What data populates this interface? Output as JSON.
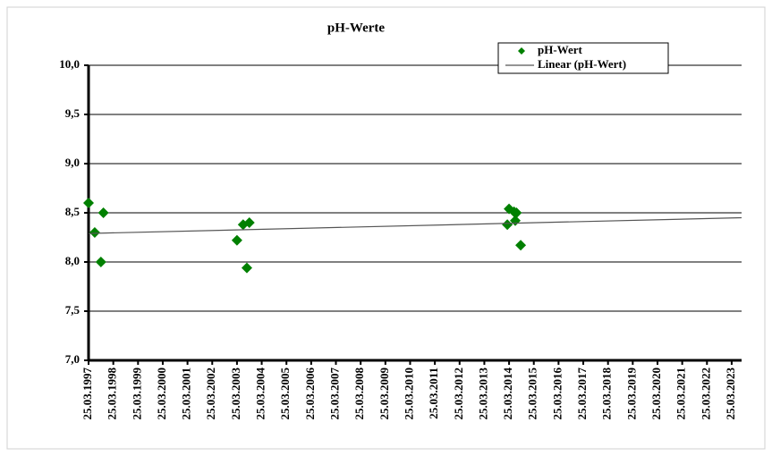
{
  "chart_data": {
    "type": "scatter",
    "title": "pH-Werte",
    "series": [
      {
        "name": "pH-Wert",
        "color": "#008000",
        "x": [
          1997.0,
          1997.25,
          1997.5,
          1997.6,
          2003.0,
          2003.25,
          2003.5,
          2003.4,
          2013.93,
          2014.0,
          2014.2,
          2014.3,
          2014.25,
          2014.47
        ],
        "values": [
          8.6,
          8.3,
          8.0,
          8.5,
          8.22,
          8.38,
          8.4,
          7.94,
          8.38,
          8.54,
          8.51,
          8.5,
          8.42,
          8.17
        ]
      },
      {
        "name": "Linear (pH-Wert)",
        "type": "line",
        "color": "#555555",
        "x": [
          1997.0,
          2023.4
        ],
        "values": [
          8.29,
          8.45
        ]
      }
    ],
    "xlim": [
      1997.0,
      2023.4
    ],
    "xticks": [
      {
        "value": 1997,
        "label": "25.03.1997"
      },
      {
        "value": 1998,
        "label": "25.03.1998"
      },
      {
        "value": 1999,
        "label": "25.03.1999"
      },
      {
        "value": 2000,
        "label": "25.03.2000"
      },
      {
        "value": 2001,
        "label": "25.03.2001"
      },
      {
        "value": 2002,
        "label": "25.03.2002"
      },
      {
        "value": 2003,
        "label": "25.03.2003"
      },
      {
        "value": 2004,
        "label": "25.03.2004"
      },
      {
        "value": 2005,
        "label": "25.03.2005"
      },
      {
        "value": 2006,
        "label": "25.03.2006"
      },
      {
        "value": 2007,
        "label": "25.03.2007"
      },
      {
        "value": 2008,
        "label": "25.03.2008"
      },
      {
        "value": 2009,
        "label": "25.03.2009"
      },
      {
        "value": 2010,
        "label": "25.03.2010"
      },
      {
        "value": 2011,
        "label": "25.03.2011"
      },
      {
        "value": 2012,
        "label": "25.03.2012"
      },
      {
        "value": 2013,
        "label": "25.03.2013"
      },
      {
        "value": 2014,
        "label": "25.03.2014"
      },
      {
        "value": 2015,
        "label": "25.03.2015"
      },
      {
        "value": 2016,
        "label": "25.03.2016"
      },
      {
        "value": 2017,
        "label": "25.03.2017"
      },
      {
        "value": 2018,
        "label": "25.03.2018"
      },
      {
        "value": 2019,
        "label": "25.03.2019"
      },
      {
        "value": 2020,
        "label": "25.03.2020"
      },
      {
        "value": 2021,
        "label": "25.03.2021"
      },
      {
        "value": 2022,
        "label": "25.03.2022"
      },
      {
        "value": 2023,
        "label": "25.03.2023"
      }
    ],
    "ylim": [
      7.0,
      10.0
    ],
    "yticks": [
      {
        "value": 7.0,
        "label": "7,0"
      },
      {
        "value": 7.5,
        "label": "7,5"
      },
      {
        "value": 8.0,
        "label": "8,0"
      },
      {
        "value": 8.5,
        "label": "8,5"
      },
      {
        "value": 9.0,
        "label": "9,0"
      },
      {
        "value": 9.5,
        "label": "9,5"
      },
      {
        "value": 10.0,
        "label": "10,0"
      }
    ],
    "grid": true,
    "legend": "top-right"
  }
}
